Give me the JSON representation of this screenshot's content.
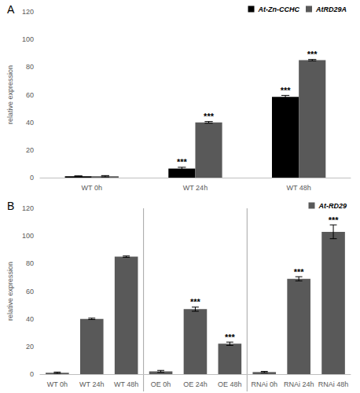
{
  "chart_data": [
    {
      "type": "bar",
      "title": "A",
      "categories": [
        "WT 0h",
        "WT 24h",
        "WT 48h"
      ],
      "ylabel": "relative expression",
      "ylim": [
        0,
        120
      ],
      "yticks": [
        0,
        20,
        40,
        60,
        80,
        100,
        120
      ],
      "grid": false,
      "legend": "top-right",
      "series": [
        {
          "name": "At-Zn-CCHC",
          "color": "#000000",
          "values": [
            1,
            6.5,
            58.5
          ],
          "errors": [
            0.3,
            1,
            1
          ],
          "significance": [
            null,
            "***",
            "***"
          ]
        },
        {
          "name": "AtRD29A",
          "color": "#595959",
          "values": [
            1,
            40,
            85
          ],
          "errors": [
            0.5,
            0.6,
            0.5
          ],
          "significance": [
            null,
            "***",
            "***"
          ]
        }
      ]
    },
    {
      "type": "bar",
      "title": "B",
      "categories": [
        "WT 0h",
        "WT 24h",
        "WT 48h",
        "OE 0h",
        "OE 24h",
        "OE 48h",
        "RNAi 0h",
        "RNAi 24h",
        "RNAi 48h"
      ],
      "ylabel": "relative expression",
      "ylim": [
        0,
        120
      ],
      "yticks": [
        0,
        20,
        40,
        60,
        80,
        100,
        120
      ],
      "grid": false,
      "legend": "top-right",
      "series": [
        {
          "name": "At-RD29",
          "color": "#595959",
          "values": [
            1,
            40,
            85,
            2,
            47,
            22,
            1.5,
            69,
            103
          ],
          "errors": [
            0.5,
            0.5,
            0.5,
            0.7,
            1.5,
            1.2,
            0.5,
            1.5,
            5
          ],
          "significance": [
            null,
            null,
            null,
            null,
            "***",
            "***",
            null,
            "***",
            "***"
          ]
        }
      ]
    }
  ]
}
